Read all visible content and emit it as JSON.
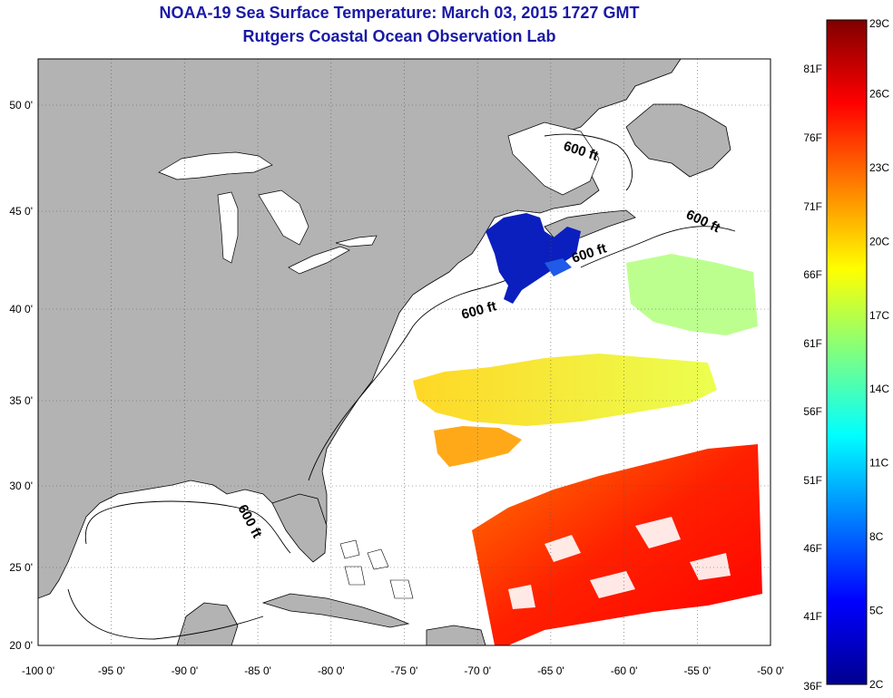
{
  "title": "NOAA-19 Sea Surface Temperature:  March 03, 2015 1727 GMT",
  "subtitle": "Rutgers Coastal Ocean Observation Lab",
  "map": {
    "lon_ticks": [
      -100,
      -95,
      -90,
      -85,
      -80,
      -75,
      -70,
      -65,
      -60,
      -55,
      -50
    ],
    "lat_ticks": [
      20,
      25,
      30,
      35,
      40,
      45,
      50
    ],
    "lon_labels": [
      "-100 0'",
      "-95 0'",
      "-90 0'",
      "-85 0'",
      "-80 0'",
      "-75 0'",
      "-70 0'",
      "-65 0'",
      "-60 0'",
      "-55 0'",
      "-50 0'"
    ],
    "lat_labels": [
      "20 0'",
      "25 0'",
      "30 0'",
      "35 0'",
      "40 0'",
      "45 0'",
      "50 0'"
    ],
    "land_color": "#b3b3b3",
    "ocean_color": "#ffffff",
    "isobath_labels": [
      "600 ft",
      "600 ft",
      "600 ft",
      "600 ft",
      "600 ft"
    ]
  },
  "colorbar": {
    "celsius_labels": [
      "29C",
      "26C",
      "23C",
      "20C",
      "17C",
      "14C",
      "11C",
      "8C",
      "5C",
      "2C"
    ],
    "fahrenheit_labels": [
      "81F",
      "76F",
      "71F",
      "66F",
      "61F",
      "56F",
      "51F",
      "46F",
      "41F",
      "36F"
    ],
    "celsius_range": [
      2,
      29
    ],
    "colors": [
      "#00008f",
      "#0000ff",
      "#00ffff",
      "#ffff00",
      "#ff0000",
      "#800000"
    ]
  }
}
